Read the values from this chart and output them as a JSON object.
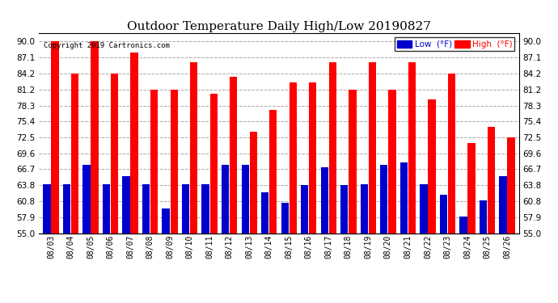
{
  "title": "Outdoor Temperature Daily High/Low 20190827",
  "copyright": "Copyright 2019 Cartronics.com",
  "dates": [
    "08/03",
    "08/04",
    "08/05",
    "08/06",
    "08/07",
    "08/08",
    "08/09",
    "08/10",
    "08/11",
    "08/12",
    "08/13",
    "08/14",
    "08/15",
    "08/16",
    "08/17",
    "08/18",
    "08/19",
    "08/20",
    "08/21",
    "08/22",
    "08/23",
    "08/24",
    "08/25",
    "08/26"
  ],
  "highs": [
    90.0,
    84.2,
    90.0,
    84.2,
    88.0,
    81.2,
    81.2,
    86.3,
    80.5,
    83.5,
    73.5,
    77.5,
    82.5,
    82.5,
    86.3,
    81.2,
    86.3,
    81.2,
    86.3,
    79.5,
    84.2,
    71.5,
    74.5,
    72.5
  ],
  "lows": [
    64.0,
    64.0,
    67.5,
    64.0,
    65.5,
    64.0,
    59.5,
    64.0,
    64.0,
    67.5,
    67.5,
    62.5,
    60.5,
    63.8,
    67.0,
    63.8,
    64.0,
    67.5,
    68.0,
    64.0,
    62.0,
    58.0,
    61.0,
    65.5
  ],
  "high_color": "#FF0000",
  "low_color": "#0000CC",
  "bg_color": "#FFFFFF",
  "plot_bg_color": "#FFFFFF",
  "grid_color": "#AAAAAA",
  "title_fontsize": 11,
  "ylim_min": 55.0,
  "ylim_max": 91.5,
  "yticks": [
    55.0,
    57.9,
    60.8,
    63.8,
    66.7,
    69.6,
    72.5,
    75.4,
    78.3,
    81.2,
    84.2,
    87.1,
    90.0
  ]
}
